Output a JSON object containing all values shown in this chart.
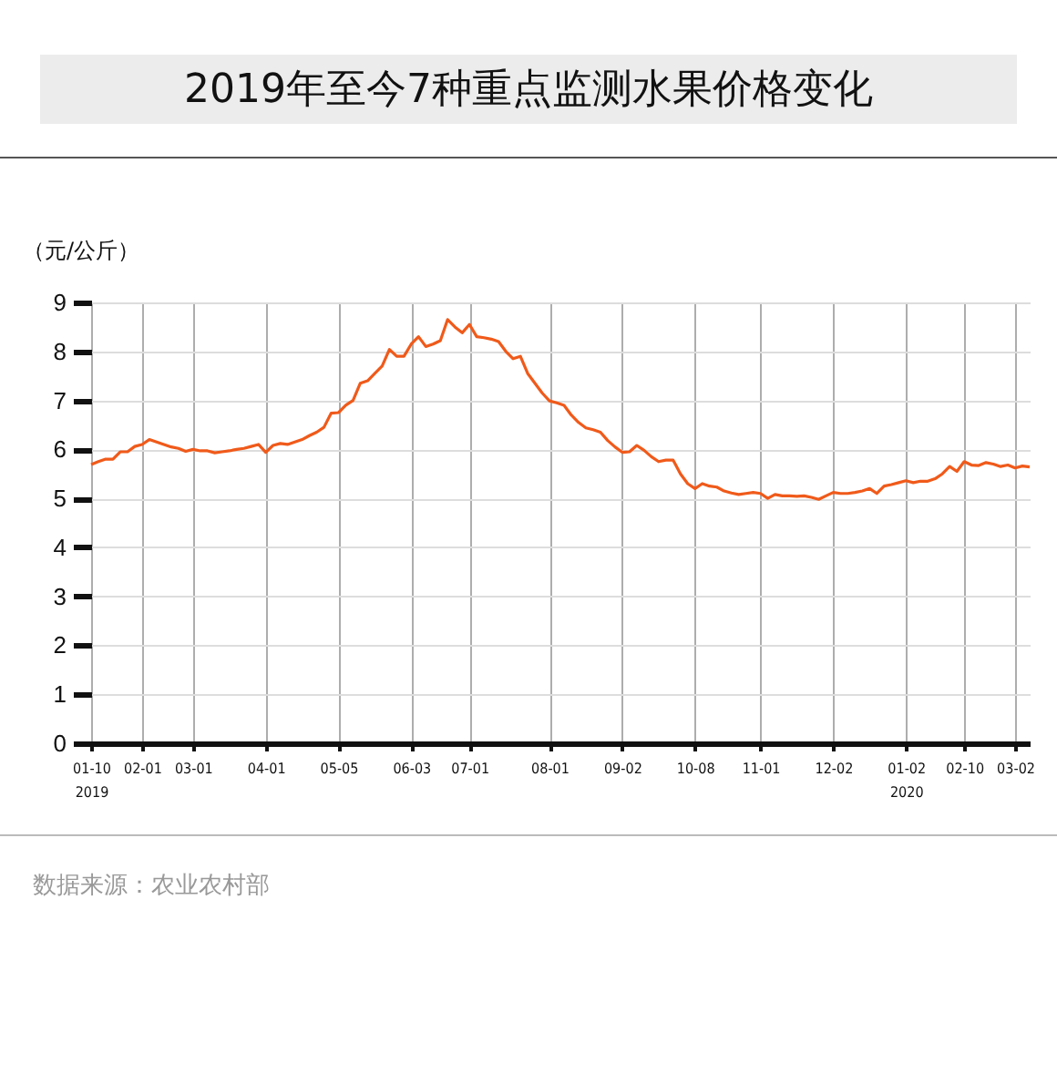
{
  "chart_data": {
    "type": "line",
    "title": "2019年至今7种重点监测水果价格变化",
    "ylabel": "（元/公斤）",
    "annotations": [
      "数据来源：农业农村部"
    ],
    "categories": [
      "01-10\n2019",
      null,
      null,
      null,
      null,
      null,
      null,
      "02-01",
      null,
      null,
      null,
      null,
      null,
      null,
      "03-01",
      null,
      null,
      null,
      null,
      null,
      null,
      null,
      null,
      null,
      "04-01",
      null,
      null,
      null,
      null,
      null,
      null,
      null,
      null,
      null,
      "05-05",
      null,
      null,
      null,
      null,
      null,
      null,
      null,
      null,
      null,
      "06-03",
      null,
      null,
      null,
      null,
      null,
      null,
      null,
      "07-01",
      null,
      null,
      null,
      null,
      null,
      null,
      null,
      null,
      null,
      null,
      "08-01",
      null,
      null,
      null,
      null,
      null,
      null,
      null,
      null,
      null,
      "09-02",
      null,
      null,
      null,
      null,
      null,
      null,
      null,
      null,
      null,
      "10-08",
      null,
      null,
      null,
      null,
      null,
      null,
      null,
      null,
      "11-01",
      null,
      null,
      null,
      null,
      null,
      null,
      null,
      null,
      null,
      "12-02",
      null,
      null,
      null,
      null,
      null,
      null,
      null,
      null,
      null,
      "01-02\n2020",
      null,
      null,
      null,
      null,
      null,
      null,
      null,
      "02-10",
      null,
      null,
      null,
      null,
      null,
      null,
      "03-02",
      null,
      null
    ],
    "values": [
      5.69,
      5.75,
      5.8,
      5.8,
      5.95,
      5.95,
      6.06,
      6.1,
      6.2,
      6.15,
      6.1,
      6.05,
      6.02,
      5.96,
      6.0,
      5.97,
      5.97,
      5.93,
      5.95,
      5.97,
      6.0,
      6.02,
      6.06,
      6.1,
      5.94,
      6.08,
      6.12,
      6.1,
      6.15,
      6.2,
      6.28,
      6.35,
      6.45,
      6.74,
      6.75,
      6.9,
      7.0,
      7.35,
      7.4,
      7.55,
      7.7,
      8.04,
      7.9,
      7.9,
      8.15,
      8.3,
      8.1,
      8.15,
      8.22,
      8.65,
      8.5,
      8.38,
      8.55,
      8.3,
      8.28,
      8.25,
      8.2,
      8.0,
      7.85,
      7.9,
      7.55,
      7.35,
      7.15,
      6.99,
      6.95,
      6.9,
      6.7,
      6.55,
      6.44,
      6.4,
      6.35,
      6.18,
      6.05,
      5.94,
      5.95,
      6.08,
      5.98,
      5.85,
      5.75,
      5.78,
      5.78,
      5.5,
      5.3,
      5.2,
      5.3,
      5.25,
      5.23,
      5.15,
      5.11,
      5.08,
      5.1,
      5.12,
      5.1,
      5.0,
      5.08,
      5.05,
      5.05,
      5.04,
      5.05,
      5.02,
      4.98,
      5.05,
      5.12,
      5.1,
      5.1,
      5.12,
      5.15,
      5.2,
      5.1,
      5.25,
      5.28,
      5.32,
      5.36,
      5.32,
      5.35,
      5.35,
      5.4,
      5.5,
      5.65,
      5.55,
      5.75,
      5.68,
      5.67,
      5.73,
      5.7,
      5.65,
      5.68,
      5.62,
      5.66,
      5.64
    ],
    "color": "#f05a1a",
    "ylim": [
      0,
      9
    ],
    "yticks": [
      0,
      1,
      2,
      3,
      4,
      5,
      6,
      7,
      8,
      9
    ],
    "grid": true,
    "marker": "none",
    "line_style": "solid"
  }
}
